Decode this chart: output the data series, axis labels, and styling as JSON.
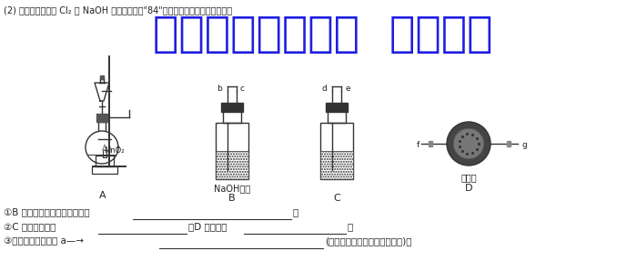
{
  "title_line": "(2) 实验小组欲利用 Cl₂ 与 NaOH 溶液反应制备\"84\"消毒液，选择实验装置如下：",
  "watermark": "微信公众号关注：  趣找答案",
  "label_A": "A",
  "label_B": "B",
  "label_C": "C",
  "label_D": "D",
  "label_MnO2": "MnO₂",
  "label_NaOH": "NaOH溶液",
  "label_jianshuihui": "碱石灰",
  "label_b": "b",
  "label_c": "c",
  "label_d": "d",
  "label_e": "e",
  "label_f": "f",
  "label_g": "g",
  "q1": "①B 中发生反应的离子方程式为",
  "q2": "②C 中盛装试剂为",
  "q2b": "，D 的作用是",
  "q3": "③仪器的连接顺序为 a—→",
  "q3b": "(按气流方向，用小写字母表示)。",
  "bg_color": "#ffffff",
  "text_color": "#222222",
  "watermark_color": "#0000dd",
  "line_color": "#333333"
}
